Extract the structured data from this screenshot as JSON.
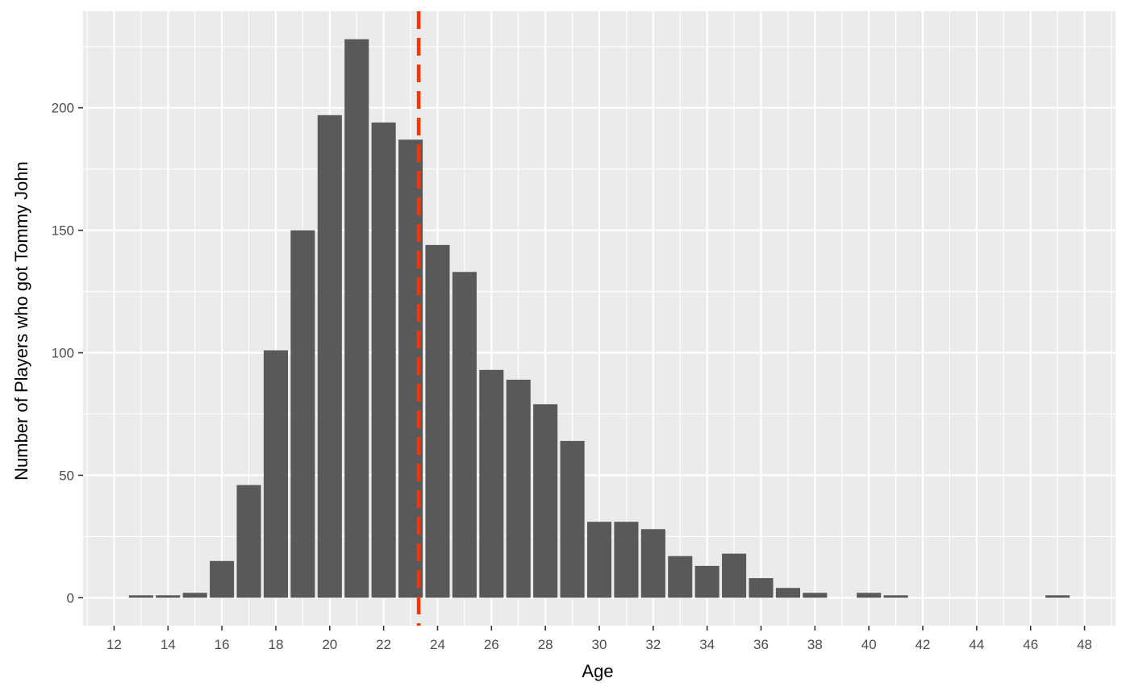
{
  "chart_data": {
    "type": "bar",
    "xlabel": "Age",
    "ylabel": "Number of Players who got Tommy John",
    "x": [
      13,
      14,
      15,
      16,
      17,
      18,
      19,
      20,
      21,
      22,
      23,
      24,
      25,
      26,
      27,
      28,
      29,
      30,
      31,
      32,
      33,
      34,
      35,
      36,
      37,
      38,
      40,
      41,
      47
    ],
    "values": [
      1,
      1,
      2,
      15,
      46,
      101,
      150,
      197,
      228,
      194,
      187,
      144,
      133,
      93,
      89,
      79,
      64,
      31,
      31,
      28,
      17,
      13,
      18,
      8,
      4,
      2,
      2,
      1,
      1
    ],
    "xlim": [
      10.85,
      49.15
    ],
    "ylim": [
      -11.4,
      239.4
    ],
    "x_ticks": [
      "12",
      "14",
      "16",
      "18",
      "20",
      "22",
      "24",
      "26",
      "28",
      "30",
      "32",
      "34",
      "36",
      "38",
      "40",
      "42",
      "44",
      "46",
      "48"
    ],
    "y_ticks": [
      "0",
      "50",
      "100",
      "150",
      "200"
    ],
    "vline": {
      "x": 23.3,
      "style": "dashed",
      "color": "#ff3300"
    },
    "grid": true,
    "colors": {
      "bar": "#595959",
      "panel": "#ebebeb",
      "grid": "#ffffff",
      "vline": "#ff3300"
    }
  }
}
